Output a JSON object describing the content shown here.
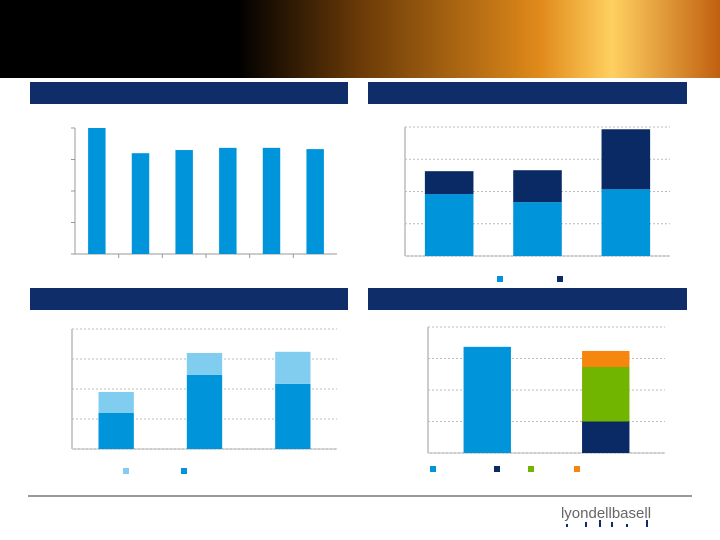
{
  "logo": "lyondellbasell",
  "chart_data": [
    {
      "type": "bar",
      "values": [
        4.0,
        3.2,
        3.3,
        3.37,
        3.37,
        3.33
      ],
      "color": "#0095da",
      "ylim": [
        0,
        4
      ],
      "yticks": [
        0,
        1,
        2,
        3,
        4
      ],
      "grid": false
    },
    {
      "type": "bar",
      "stacked": true,
      "series": [
        {
          "color": "#0095da",
          "values": [
            1.92,
            1.67,
            2.07
          ]
        },
        {
          "color": "#0a2a66",
          "values": [
            0.71,
            0.99,
            1.86
          ]
        }
      ],
      "ylim": [
        0,
        4
      ],
      "yticks": [
        0,
        1,
        2,
        3,
        4
      ],
      "grid": true
    },
    {
      "type": "bar",
      "stacked": true,
      "series": [
        {
          "color": "#0095da",
          "values": [
            1.2,
            2.47,
            2.17
          ]
        },
        {
          "color": "#80cdf0",
          "values": [
            0.7,
            0.73,
            1.07
          ]
        }
      ],
      "ylim": [
        0,
        4
      ],
      "yticks": [
        0,
        1,
        2,
        3,
        4
      ],
      "grid": true
    },
    {
      "type": "bar",
      "stacked": true,
      "series": [
        {
          "color": "#0095da",
          "values": [
            3.37,
            null
          ]
        },
        {
          "color": "#0a2a66",
          "values": [
            null,
            1.0
          ]
        },
        {
          "color": "#72b500",
          "values": [
            null,
            1.73
          ]
        },
        {
          "color": "#f7860f",
          "values": [
            null,
            0.51
          ]
        }
      ],
      "ylim": [
        0,
        4
      ],
      "yticks": [
        0,
        1,
        2,
        3,
        4
      ],
      "grid": true
    }
  ]
}
